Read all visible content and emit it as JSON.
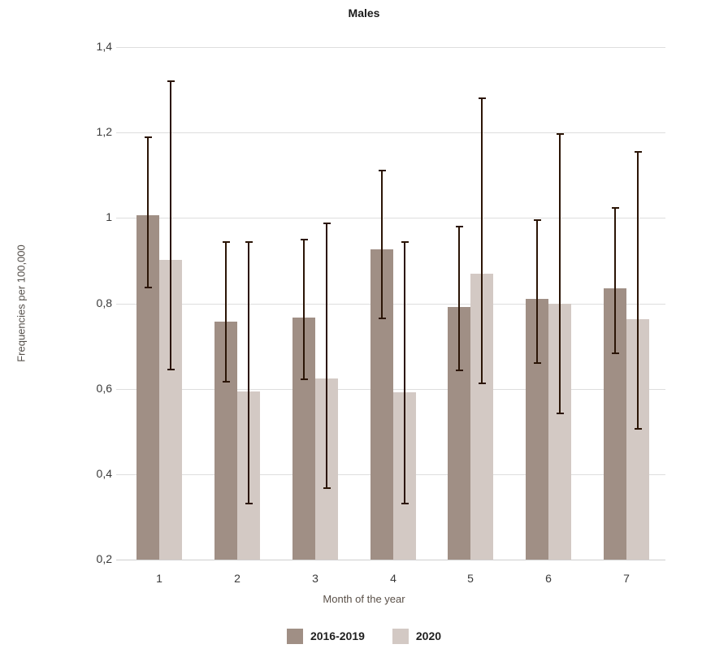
{
  "title": "Males",
  "chart_data": {
    "type": "bar",
    "title": "Males",
    "xlabel": "Month of the year",
    "ylabel": "Frequencies per 100,000",
    "categories": [
      "1",
      "2",
      "3",
      "4",
      "5",
      "6",
      "7"
    ],
    "ylim": [
      0.2,
      1.4
    ],
    "y_tick_step": 0.2,
    "y_ticks": [
      "1,4",
      "1,2",
      "1",
      "0,8",
      "0,6",
      "0,4",
      "0,2"
    ],
    "decimal_separator": ",",
    "grid": true,
    "legend_position": "bottom",
    "error_bars": true,
    "error_bar_color": "#2b1506",
    "series": [
      {
        "name": "2016-2019",
        "color": "#a08f85",
        "values": [
          1.006,
          0.757,
          0.767,
          0.926,
          0.791,
          0.81,
          0.836
        ],
        "errors_low": [
          0.838,
          0.616,
          0.623,
          0.765,
          0.643,
          0.66,
          0.683
        ],
        "errors_high": [
          1.191,
          0.945,
          0.951,
          1.112,
          0.981,
          0.997,
          1.026
        ]
      },
      {
        "name": "2020",
        "color": "#d3c9c4",
        "values": [
          0.902,
          0.593,
          0.625,
          0.592,
          0.869,
          0.799,
          0.763
        ],
        "errors_low": [
          0.645,
          0.331,
          0.368,
          0.331,
          0.612,
          0.542,
          0.506
        ],
        "errors_high": [
          1.322,
          0.945,
          0.989,
          0.946,
          1.283,
          1.199,
          1.156
        ]
      }
    ],
    "colors": {
      "background": "#ffffff",
      "gridline": "#dedede",
      "axis_line": "#cfcfcf",
      "title_text": "#1a1a1a",
      "tick_text": "#3a3a3a",
      "axis_title_text": "#5a5048"
    }
  }
}
